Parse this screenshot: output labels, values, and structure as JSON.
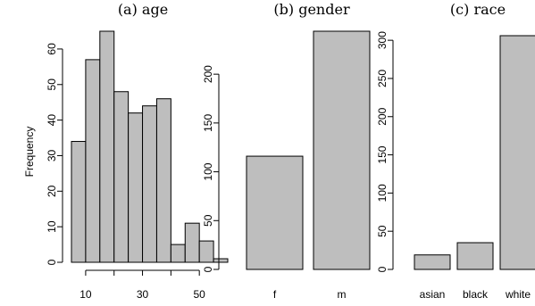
{
  "chart_data": [
    {
      "type": "histogram",
      "title": "(a) age",
      "ylabel": "Frequency",
      "xlabel": "",
      "bins": [
        [
          5,
          10
        ],
        [
          10,
          15
        ],
        [
          15,
          20
        ],
        [
          20,
          25
        ],
        [
          25,
          30
        ],
        [
          30,
          35
        ],
        [
          35,
          40
        ],
        [
          40,
          45
        ],
        [
          45,
          50
        ],
        [
          50,
          55
        ],
        [
          55,
          60
        ]
      ],
      "values": [
        34,
        57,
        65,
        48,
        42,
        44,
        46,
        5,
        11,
        6,
        1
      ],
      "xlim": [
        5,
        60
      ],
      "ylim": [
        0,
        65
      ],
      "xticks": [
        10,
        30,
        50
      ],
      "yticks": [
        0,
        10,
        20,
        30,
        40,
        50,
        60
      ]
    },
    {
      "type": "bar",
      "title": "(b) gender",
      "categories": [
        "f",
        "m"
      ],
      "values": [
        116,
        244
      ],
      "ylim": [
        0,
        244
      ],
      "yticks": [
        0,
        50,
        100,
        150,
        200
      ]
    },
    {
      "type": "bar",
      "title": "(c) race",
      "categories": [
        "asian",
        "black",
        "white"
      ],
      "values": [
        19,
        35,
        306
      ],
      "ylim": [
        0,
        306
      ],
      "yticks": [
        0,
        50,
        100,
        150,
        200,
        250,
        300
      ]
    }
  ]
}
